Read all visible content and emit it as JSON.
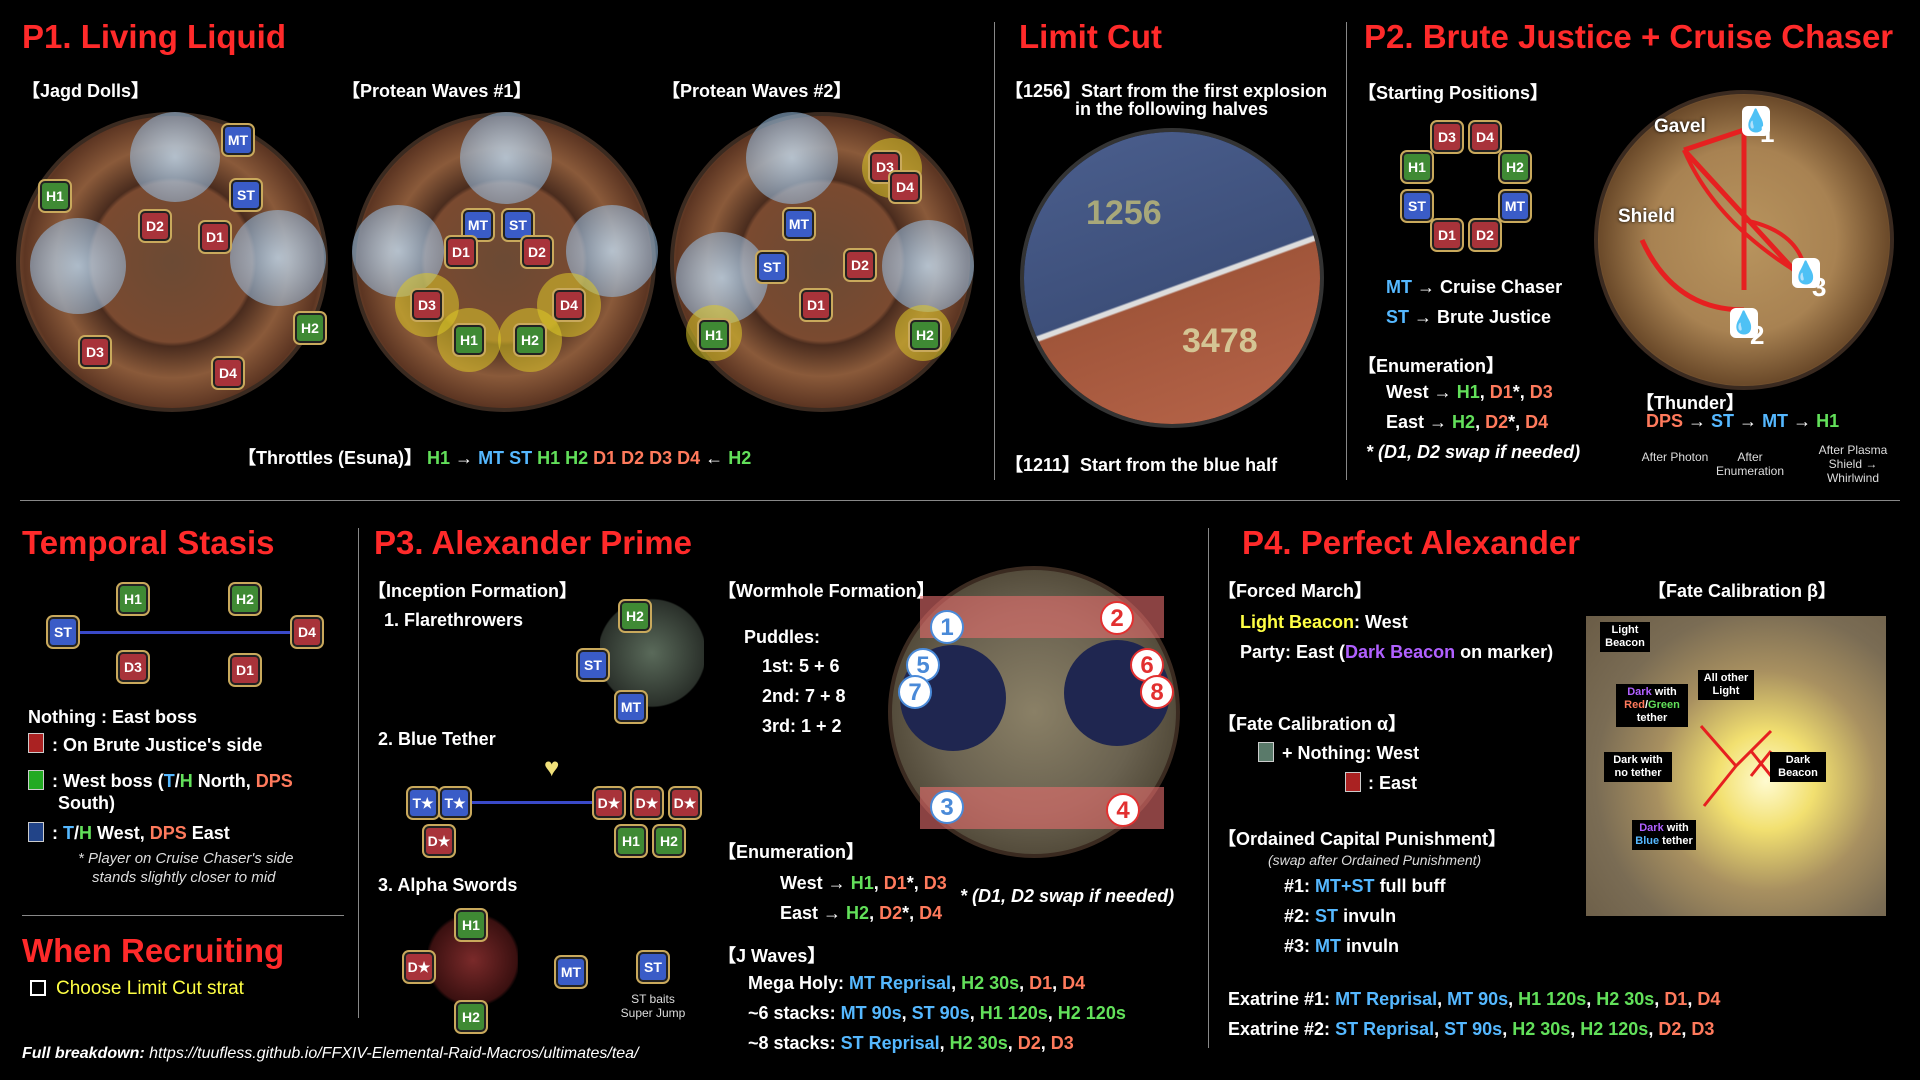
{
  "p1": {
    "title": "P1. Living Liquid",
    "jagd": "【Jagd Dolls】",
    "protean1": "【Protean Waves #1】",
    "protean2": "【Protean Waves #2】",
    "throttles_label": "【Throttles (Esuna)】",
    "throttles_seq": [
      {
        "t": "H1",
        "c": "heal"
      },
      {
        "t": "→",
        "c": ""
      },
      {
        "t": "MT",
        "c": "tank"
      },
      {
        "t": "ST",
        "c": "tank"
      },
      {
        "t": "H1",
        "c": "heal"
      },
      {
        "t": "H2",
        "c": "heal"
      },
      {
        "t": "D1",
        "c": "dps"
      },
      {
        "t": "D2",
        "c": "dps"
      },
      {
        "t": "D3",
        "c": "dps"
      },
      {
        "t": "D4",
        "c": "dps"
      },
      {
        "t": "←",
        "c": ""
      },
      {
        "t": "H2",
        "c": "heal"
      }
    ]
  },
  "limit_cut": {
    "title": "Limit Cut",
    "line1": "【1256】Start from the first explosion",
    "line2": "in the following halves",
    "half_a": "1256",
    "half_b": "3478",
    "bottom": "【1211】Start from the blue half"
  },
  "p2": {
    "title": "P2. Brute Justice + Cruise Chaser",
    "starting": "【Starting Positions】",
    "mt_label": "MT",
    "mt_text": "→ Cruise Chaser",
    "st_label": "ST",
    "st_text": "→ Brute Justice",
    "enumeration": "【Enumeration】",
    "west": "West →",
    "east": "East →",
    "swap_note": "(D1, D2 swap if needed)",
    "gavel": "Gavel",
    "shield": "Shield",
    "thunder": "【Thunder】",
    "thunder_seq": [
      "DPS",
      "ST",
      "MT",
      "H1"
    ],
    "after_photon": "After Photon",
    "after_enum": "After Enumeration",
    "after_plasma": "After Plasma Shield → Whirlwind"
  },
  "temporal": {
    "title": "Temporal Stasis",
    "nothing": "Nothing : East boss",
    "line1": ": On Brute Justice's side",
    "line2a": ": West boss (",
    "line2b": "T",
    "line2c": "/",
    "line2d": "H",
    "line2e": " North, ",
    "line2f": "DPS",
    "line2g": "South)",
    "line3a": ": ",
    "line3b": "T",
    "line3c": "/",
    "line3d": "H",
    "line3e": " West, ",
    "line3f": "DPS",
    "line3g": " East",
    "note1": "* Player on Cruise Chaser's side",
    "note2": "stands slightly closer to mid"
  },
  "recruit": {
    "title": "When Recruiting",
    "item": "Choose Limit Cut strat"
  },
  "footer": {
    "label": "Full breakdown:",
    "url": "https://tuufless.github.io/FFXIV-Elemental-Raid-Macros/ultimates/tea/"
  },
  "p3": {
    "title": "P3. Alexander Prime",
    "inception": "【Inception Formation】",
    "flare": "1. Flarethrowers",
    "blue": "2. Blue Tether",
    "alpha": "3. Alpha Swords",
    "st_baits": "ST baits Super Jump",
    "wormhole": "【Wormhole Formation】",
    "puddles": "Puddles:",
    "p1": "1st: 5 + 6",
    "p2": "2nd: 7 + 8",
    "p3": "3rd: 1 + 2",
    "enumeration": "【Enumeration】",
    "west": "West →",
    "east": "East →",
    "swap_note": "(D1, D2 swap if needed)",
    "jwaves": "【J Waves】",
    "mega_label": "Mega Holy:",
    "six_label": "~6 stacks:",
    "eight_label": "~8 stacks:"
  },
  "p4": {
    "title": "P4. Perfect Alexander",
    "forced": "【Forced March】",
    "light_beacon": "Light Beacon",
    "west": ": West",
    "party": "Party: East (",
    "dark_beacon": "Dark Beacon",
    "on_marker": " on marker)",
    "fate_alpha": "【Fate Calibration α】",
    "nothing_west": "+ Nothing: West",
    "east": ": East",
    "ordained": "【Ordained Capital Punishment】",
    "swap_after": "(swap after Ordained Punishment)",
    "o1a": "#1:",
    "o1b": "MT+ST",
    "o1c": "full buff",
    "o2a": "#2:",
    "o2b": "ST",
    "o2c": "invuln",
    "o3a": "#3:",
    "o3b": "MT",
    "o3c": "invuln",
    "ex1": "Exatrine #1:",
    "ex2": "Exatrine #2:",
    "fate_beta": "【Fate Calibration β】",
    "tag_light_beacon": "Light Beacon",
    "tag_dark_rg_a": "Dark",
    "tag_dark_rg_b": "with",
    "tag_dark_rg_c": "Red",
    "tag_dark_rg_d": "/",
    "tag_dark_rg_e": "Green",
    "tag_dark_rg_f": "tether",
    "tag_all_other": "All other Light",
    "tag_dark_no": "Dark with no tether",
    "tag_dark_beacon": "Dark Beacon",
    "tag_dark_blue_a": "Dark",
    "tag_dark_blue_b": "with",
    "tag_dark_blue_c": "Blue",
    "tag_dark_blue_d": "tether"
  },
  "markers": {
    "MT": "MT",
    "ST": "ST",
    "H1": "H1",
    "H2": "H2",
    "D1": "D1",
    "D2": "D2",
    "D3": "D3",
    "D4": "D4"
  }
}
